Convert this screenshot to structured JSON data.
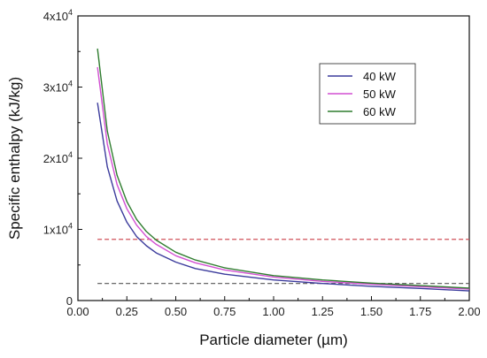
{
  "chart_data": {
    "type": "line",
    "title": "",
    "xlabel": "Particle diameter (µm)",
    "ylabel": "Specific enthalpy (kJ/kg)",
    "xlim": [
      0,
      2.0
    ],
    "ylim": [
      0,
      40000
    ],
    "x_ticks": [
      0,
      0.25,
      0.5,
      0.75,
      1.0,
      1.25,
      1.5,
      1.75,
      2.0
    ],
    "x_tick_labels": [
      "0.00",
      "0.25",
      "0.50",
      "0.75",
      "1.00",
      "1.25",
      "1.50",
      "1.75",
      "2.00"
    ],
    "y_ticks": [
      0,
      10000,
      20000,
      30000,
      40000
    ],
    "y_tick_labels": [
      {
        "base": "0",
        "exp": ""
      },
      {
        "base": "1x10",
        "exp": "4"
      },
      {
        "base": "2x10",
        "exp": "4"
      },
      {
        "base": "3x10",
        "exp": "4"
      },
      {
        "base": "4x10",
        "exp": "4"
      }
    ],
    "grid": false,
    "legend_position": "top-right",
    "x": [
      0.1,
      0.15,
      0.2,
      0.25,
      0.3,
      0.35,
      0.4,
      0.5,
      0.6,
      0.75,
      1.0,
      1.25,
      1.5,
      1.75,
      2.0
    ],
    "series": [
      {
        "name": "40 kW",
        "color": "#3b3b9c",
        "values": [
          27800,
          18800,
          14000,
          11000,
          9000,
          7700,
          6700,
          5400,
          4500,
          3700,
          2900,
          2400,
          2000,
          1700,
          1350
        ]
      },
      {
        "name": "50 kW",
        "color": "#d24fd2",
        "values": [
          32800,
          22000,
          16300,
          12900,
          10600,
          9000,
          7900,
          6300,
          5300,
          4300,
          3300,
          2700,
          2300,
          1950,
          1600
        ]
      },
      {
        "name": "60 kW",
        "color": "#2f7d2f",
        "values": [
          35400,
          23800,
          17600,
          13900,
          11400,
          9700,
          8500,
          6800,
          5700,
          4600,
          3500,
          2900,
          2450,
          2100,
          1750
        ]
      }
    ],
    "reference_lines": [
      {
        "y": 8600,
        "x_range": [
          0.1,
          2.0
        ],
        "style": "dashed",
        "color": "#d0505a"
      },
      {
        "y": 2400,
        "x_range": [
          0.1,
          2.0
        ],
        "style": "dashed",
        "color": "#555555"
      }
    ]
  }
}
